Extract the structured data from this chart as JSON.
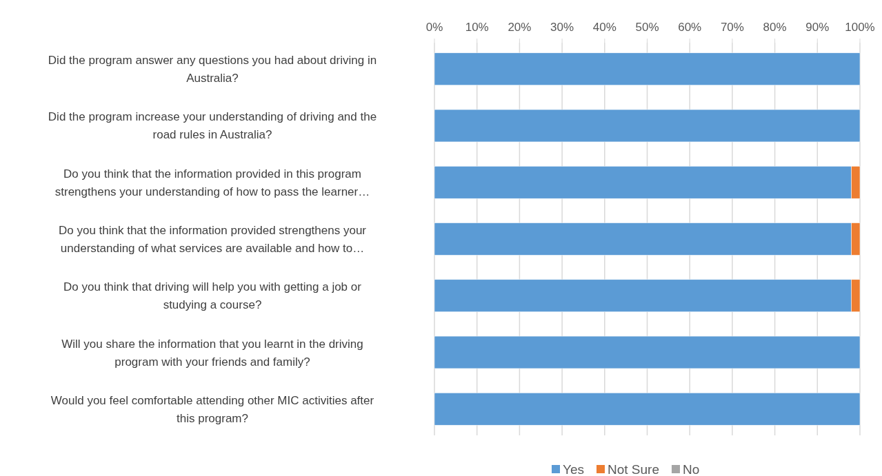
{
  "chart_data": {
    "type": "bar",
    "orientation": "horizontal",
    "stacked": true,
    "categories": [
      "Did the program answer any questions you had about driving in Australia?",
      "Did the program increase your understanding of driving and the road rules in Australia?",
      "Do you think that the information provided in this program strengthens your understanding of how to pass the learner…",
      "Do you think that the information provided strengthens your understanding of what services are available and how to…",
      "Do you think that driving will help you with getting a job or studying a course?",
      "Will you share the information that you learnt in the driving program with your friends and family?",
      "Would you feel comfortable attending other MIC activities after this program?"
    ],
    "series": [
      {
        "name": "Yes",
        "color": "#5b9bd5",
        "values": [
          100,
          100,
          98,
          98,
          98,
          100,
          100
        ]
      },
      {
        "name": "Not Sure",
        "color": "#ed7d31",
        "values": [
          0,
          0,
          2,
          2,
          2,
          0,
          0
        ]
      },
      {
        "name": "No",
        "color": "#a5a5a5",
        "values": [
          0,
          0,
          0,
          0,
          0,
          0,
          0
        ]
      }
    ],
    "xlim": [
      0,
      100
    ],
    "xticks": [
      {
        "value": 0,
        "label": "0%"
      },
      {
        "value": 10,
        "label": "10%"
      },
      {
        "value": 20,
        "label": "20%"
      },
      {
        "value": 30,
        "label": "30%"
      },
      {
        "value": 40,
        "label": "40%"
      },
      {
        "value": 50,
        "label": "50%"
      },
      {
        "value": 60,
        "label": "60%"
      },
      {
        "value": 70,
        "label": "70%"
      },
      {
        "value": 80,
        "label": "80%"
      },
      {
        "value": 90,
        "label": "90%"
      },
      {
        "value": 100,
        "label": "100%"
      }
    ],
    "grid": "x",
    "legend": "bottom"
  }
}
